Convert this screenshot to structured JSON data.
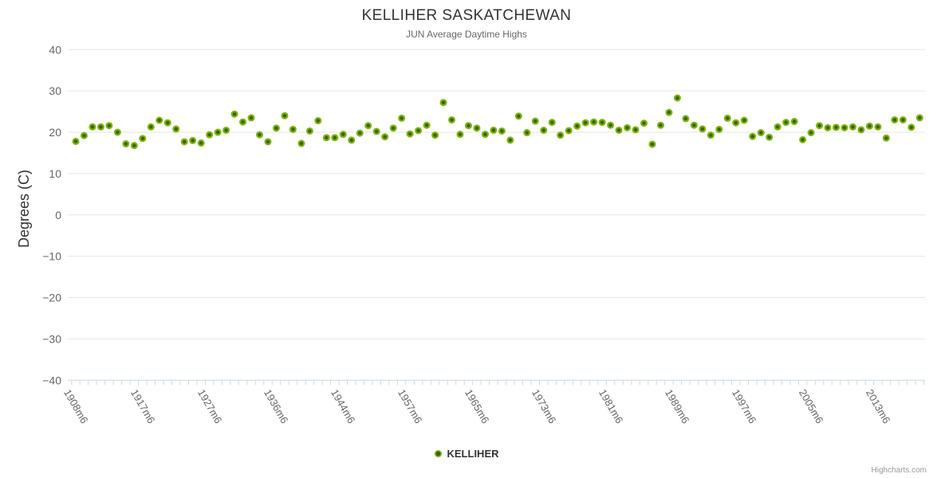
{
  "title": "KELLIHER SASKATCHEWAN",
  "subtitle": "JUN Average Daytime Highs",
  "credits": "Highcharts.com",
  "legend": {
    "series_label": "KELLIHER"
  },
  "colors": {
    "marker_outer": "#7cb502",
    "marker_inner": "#356203",
    "grid": "#e6e6e6",
    "axis_line": "#ccd6eb",
    "title_text": "#333333",
    "muted_text": "#666666",
    "credits_text": "#999999"
  },
  "chart_data": {
    "type": "scatter",
    "title": "KELLIHER SASKATCHEWAN",
    "subtitle": "JUN Average Daytime Highs",
    "series_name": "KELLIHER",
    "xlabel": "",
    "ylabel": "Degrees (C)",
    "ylim": [
      -40,
      40
    ],
    "y_tick_step": 10,
    "grid": true,
    "legend_position": "bottom",
    "y_tick_values": [
      40,
      30,
      20,
      10,
      0,
      -10,
      -20,
      -30,
      -40
    ],
    "y_tick_labels": [
      "40",
      "30",
      "20",
      "10",
      "0",
      "−10",
      "−20",
      "−30",
      "−40"
    ],
    "x_tick_labels": [
      "1908m6",
      "1917m6",
      "1927m6",
      "1936m6",
      "1944m6",
      "1957m6",
      "1965m6",
      "1973m6",
      "1981m6",
      "1989m6",
      "1997m6",
      "2005m6",
      "2013m6"
    ],
    "x_tick_indices": [
      0,
      8,
      16,
      24,
      32,
      40,
      48,
      56,
      64,
      72,
      80,
      88,
      96
    ],
    "num_points": 102,
    "values": [
      17.8,
      19.2,
      21.3,
      21.3,
      21.6,
      20.0,
      17.2,
      16.8,
      18.5,
      21.3,
      22.9,
      22.3,
      20.8,
      17.7,
      18.0,
      17.4,
      19.4,
      20.0,
      20.5,
      24.4,
      22.5,
      23.5,
      19.4,
      17.7,
      21.0,
      24.0,
      20.7,
      17.3,
      20.3,
      22.8,
      18.7,
      18.7,
      19.5,
      18.1,
      19.8,
      21.6,
      20.2,
      18.9,
      21.0,
      23.4,
      19.6,
      20.4,
      21.7,
      19.3,
      27.2,
      23.0,
      19.5,
      21.6,
      21.0,
      19.5,
      20.5,
      20.3,
      18.1,
      23.9,
      19.9,
      22.7,
      20.5,
      22.4,
      19.3,
      20.4,
      21.5,
      22.3,
      22.5,
      22.4,
      21.7,
      20.5,
      21.1,
      20.6,
      22.2,
      17.1,
      21.7,
      24.8,
      28.3,
      23.3,
      21.7,
      20.8,
      19.3,
      20.7,
      23.4,
      22.3,
      22.9,
      19.0,
      19.9,
      18.8,
      21.3,
      22.4,
      22.6,
      18.2,
      19.9,
      21.6,
      21.1,
      21.2,
      21.1,
      21.3,
      20.6,
      21.5,
      21.3,
      18.6,
      23.0,
      23.0,
      21.2,
      23.5
    ]
  }
}
